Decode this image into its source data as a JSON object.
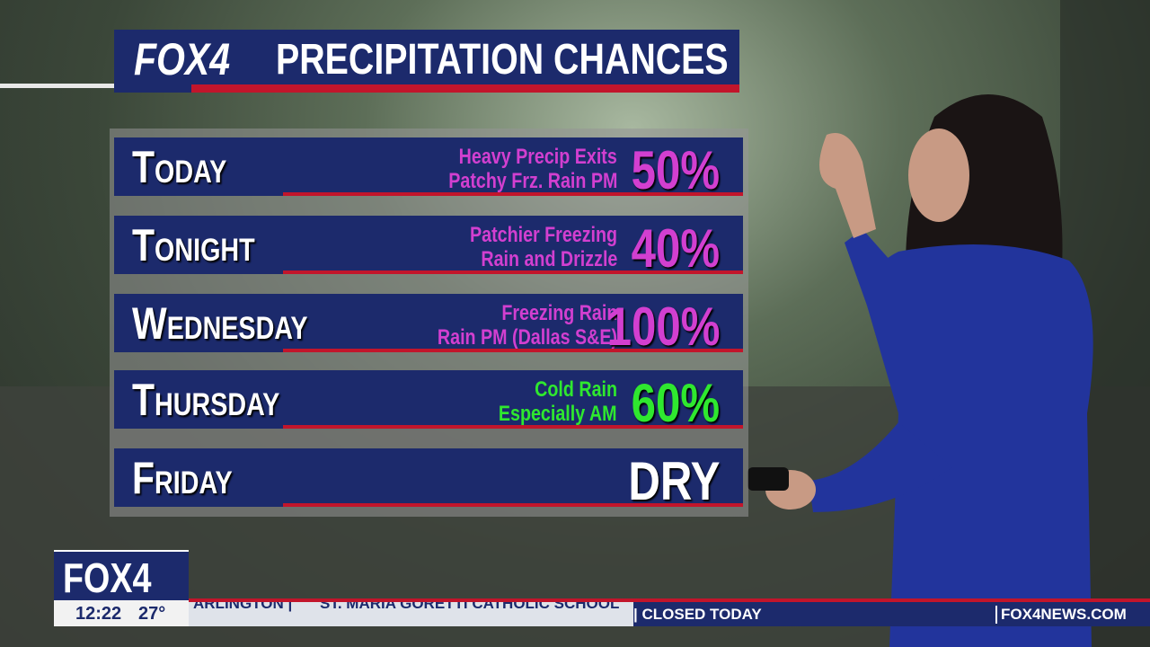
{
  "header": {
    "logo": "FOX4",
    "title": "PRECIPITATION CHANCES"
  },
  "rows": [
    {
      "day": "Today",
      "notes": [
        "Heavy Precip Exits",
        "Patchy Frz. Rain PM"
      ],
      "chance": "50%",
      "color": "#d23fd0"
    },
    {
      "day": "Tonight",
      "notes": [
        "Patchier Freezing",
        "Rain and Drizzle"
      ],
      "chance": "40%",
      "color": "#d23fd0"
    },
    {
      "day": "Wednesday",
      "notes": [
        "Freezing Rain",
        "Rain PM (Dallas S&E)"
      ],
      "chance": "100%",
      "color": "#d23fd0"
    },
    {
      "day": "Thursday",
      "notes": [
        "Cold Rain",
        "Especially AM"
      ],
      "chance": "60%",
      "color": "#2fe82f"
    },
    {
      "day": "Friday",
      "notes": [],
      "chance": "DRY",
      "color": "#ffffff"
    }
  ],
  "bug": {
    "logo": "FOX4",
    "time": "12:22",
    "temperature": "27°"
  },
  "ticker": {
    "items": [
      "ARLINGTON |",
      "ST. MARIA GORETTI CATHOLIC SCHOOL"
    ],
    "alert": "| CLOSED TODAY",
    "site": "FOX4NEWS.COM"
  }
}
